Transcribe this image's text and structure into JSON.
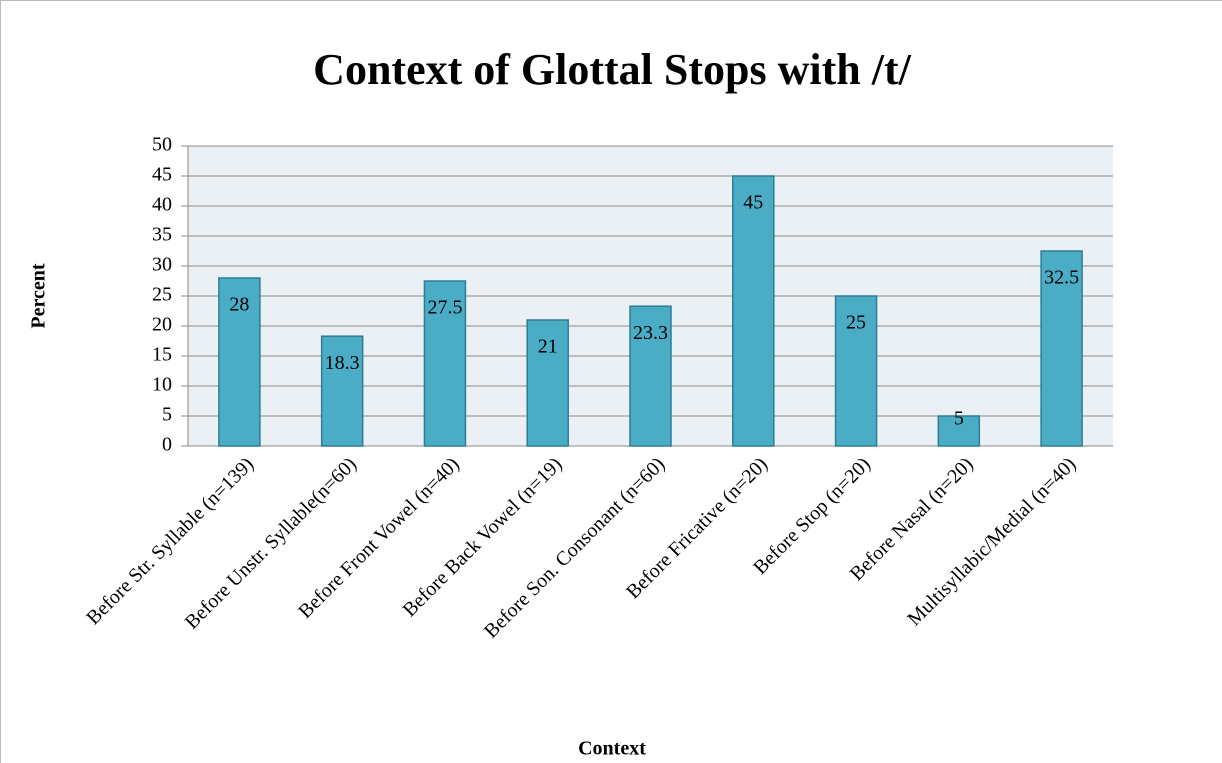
{
  "chart_data": {
    "type": "bar",
    "title": "Context of Glottal Stops with /t/",
    "x_label": "Context",
    "y_label": "Percent",
    "categories": [
      "Before Str. Syllable (n=139)",
      "Before Unstr. Syllable(n=60)",
      "Before Front Vowel (n=40)",
      "Before Back Vowel (n=19)",
      "Before Son. Consonant (n=60)",
      "Before Fricative (n=20)",
      "Before Stop (n=20)",
      "Before Nasal (n=20)",
      "Multisyllabic/Medial (n=40)"
    ],
    "values": [
      28,
      18.3,
      27.5,
      21,
      23.3,
      45,
      25,
      5,
      32.5
    ],
    "color": "#4bacc6",
    "ylim": [
      0,
      50
    ],
    "yticks": [
      0,
      5,
      10,
      15,
      20,
      25,
      30,
      35,
      40,
      45,
      50
    ],
    "grid": true
  }
}
